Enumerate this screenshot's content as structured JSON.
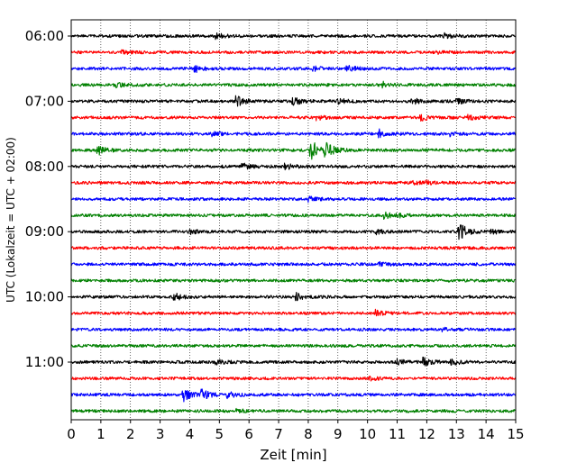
{
  "chart_data": {
    "type": "line",
    "subtype": "helicorder",
    "title": "",
    "xlabel": "Zeit  [min]",
    "ylabel": "UTC (Lokalzeit = UTC + 02:00)",
    "xlim": [
      0,
      15
    ],
    "x_ticks": [
      0,
      1,
      2,
      3,
      4,
      5,
      6,
      7,
      8,
      9,
      10,
      11,
      12,
      13,
      14,
      15
    ],
    "x_tick_labels": [
      "0",
      "1",
      "2",
      "3",
      "4",
      "5",
      "6",
      "7",
      "8",
      "9",
      "10",
      "11",
      "12",
      "13",
      "14",
      "15"
    ],
    "y_ticks": [
      "06:00",
      "07:00",
      "08:00",
      "09:00",
      "10:00",
      "11:00"
    ],
    "vertical_grid": "dotted",
    "trace_interval_min": 15,
    "trace_colors": [
      "#000000",
      "#ff0000",
      "#0000ff",
      "#008000"
    ],
    "series": [
      {
        "start": "06:00",
        "color": "#000000",
        "events": [
          {
            "x": 4.9,
            "amp": 0.25
          },
          {
            "x": 12.6,
            "amp": 0.25
          }
        ]
      },
      {
        "start": "06:15",
        "color": "#ff0000",
        "events": [
          {
            "x": 1.7,
            "amp": 0.15
          },
          {
            "x": 12.3,
            "amp": 0.2
          }
        ]
      },
      {
        "start": "06:30",
        "color": "#0000ff",
        "events": [
          {
            "x": 4.2,
            "amp": 0.3
          },
          {
            "x": 8.2,
            "amp": 0.2
          },
          {
            "x": 9.3,
            "amp": 0.3
          }
        ]
      },
      {
        "start": "06:45",
        "color": "#008000",
        "events": [
          {
            "x": 1.5,
            "amp": 0.2
          },
          {
            "x": 10.5,
            "amp": 0.3
          }
        ]
      },
      {
        "start": "07:00",
        "color": "#000000",
        "events": [
          {
            "x": 5.6,
            "amp": 0.55
          },
          {
            "x": 7.5,
            "amp": 0.4
          },
          {
            "x": 9.0,
            "amp": 0.3
          },
          {
            "x": 11.5,
            "amp": 0.3
          },
          {
            "x": 13.0,
            "amp": 0.3
          }
        ]
      },
      {
        "start": "07:15",
        "color": "#ff0000",
        "events": [
          {
            "x": 8.3,
            "amp": 0.2
          },
          {
            "x": 11.8,
            "amp": 0.3
          },
          {
            "x": 13.4,
            "amp": 0.2
          }
        ]
      },
      {
        "start": "07:30",
        "color": "#0000ff",
        "events": [
          {
            "x": 4.8,
            "amp": 0.2
          },
          {
            "x": 10.4,
            "amp": 0.4
          },
          {
            "x": 12.8,
            "amp": 0.2
          }
        ]
      },
      {
        "start": "07:45",
        "color": "#008000",
        "events": [
          {
            "x": 0.9,
            "amp": 0.5
          },
          {
            "x": 8.1,
            "amp": 1.1
          },
          {
            "x": 8.6,
            "amp": 0.7
          }
        ]
      },
      {
        "start": "08:00",
        "color": "#000000",
        "events": [
          {
            "x": 5.8,
            "amp": 0.25
          },
          {
            "x": 7.2,
            "amp": 0.35
          }
        ]
      },
      {
        "start": "08:15",
        "color": "#ff0000",
        "events": [
          {
            "x": 11.5,
            "amp": 0.15
          },
          {
            "x": 12.0,
            "amp": 0.15
          }
        ]
      },
      {
        "start": "08:30",
        "color": "#0000ff",
        "events": [
          {
            "x": 8.0,
            "amp": 0.25
          }
        ]
      },
      {
        "start": "08:45",
        "color": "#008000",
        "events": [
          {
            "x": 10.6,
            "amp": 0.3
          },
          {
            "x": 11.0,
            "amp": 0.2
          }
        ]
      },
      {
        "start": "09:00",
        "color": "#000000",
        "events": [
          {
            "x": 4.0,
            "amp": 0.2
          },
          {
            "x": 10.3,
            "amp": 0.2
          },
          {
            "x": 13.1,
            "amp": 0.9
          },
          {
            "x": 14.2,
            "amp": 0.2
          }
        ]
      },
      {
        "start": "09:15",
        "color": "#ff0000",
        "events": []
      },
      {
        "start": "09:30",
        "color": "#0000ff",
        "events": [
          {
            "x": 10.4,
            "amp": 0.2
          }
        ]
      },
      {
        "start": "09:45",
        "color": "#008000",
        "events": []
      },
      {
        "start": "10:00",
        "color": "#000000",
        "events": [
          {
            "x": 3.5,
            "amp": 0.35
          },
          {
            "x": 7.6,
            "amp": 0.35
          }
        ]
      },
      {
        "start": "10:15",
        "color": "#ff0000",
        "events": [
          {
            "x": 10.3,
            "amp": 0.3
          }
        ]
      },
      {
        "start": "10:30",
        "color": "#0000ff",
        "events": [
          {
            "x": 12.5,
            "amp": 0.15
          }
        ]
      },
      {
        "start": "10:45",
        "color": "#008000",
        "events": []
      },
      {
        "start": "11:00",
        "color": "#000000",
        "events": [
          {
            "x": 4.9,
            "amp": 0.25
          },
          {
            "x": 11.0,
            "amp": 0.3
          },
          {
            "x": 11.9,
            "amp": 0.4
          },
          {
            "x": 12.8,
            "amp": 0.3
          }
        ]
      },
      {
        "start": "11:15",
        "color": "#ff0000",
        "events": [
          {
            "x": 10.1,
            "amp": 0.15
          }
        ]
      },
      {
        "start": "11:30",
        "color": "#0000ff",
        "events": [
          {
            "x": 3.8,
            "amp": 0.65
          },
          {
            "x": 4.4,
            "amp": 0.5
          },
          {
            "x": 5.3,
            "amp": 0.3
          }
        ]
      },
      {
        "start": "11:45",
        "color": "#008000",
        "events": [
          {
            "x": 5.6,
            "amp": 0.15
          }
        ]
      }
    ]
  }
}
